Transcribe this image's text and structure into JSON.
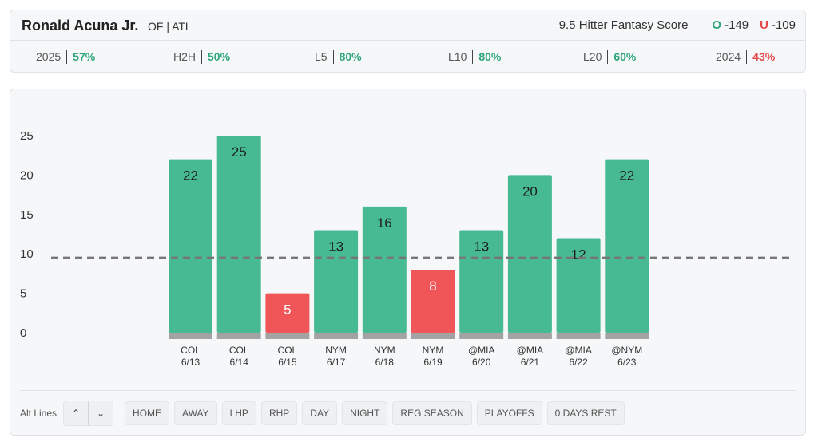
{
  "player": {
    "name": "Ronald Acuna Jr.",
    "meta": "OF | ATL"
  },
  "score": {
    "label": "9.5 Hitter Fantasy Score",
    "over_letter": "O",
    "over_odds": "-149",
    "under_letter": "U",
    "under_odds": "-109"
  },
  "stats": [
    {
      "label": "2025",
      "value": "57%",
      "trend": "positive"
    },
    {
      "label": "H2H",
      "value": "50%",
      "trend": "positive"
    },
    {
      "label": "L5",
      "value": "80%",
      "trend": "positive"
    },
    {
      "label": "L10",
      "value": "80%",
      "trend": "positive"
    },
    {
      "label": "L20",
      "value": "60%",
      "trend": "positive"
    },
    {
      "label": "2024",
      "value": "43%",
      "trend": "negative"
    }
  ],
  "chart_data": {
    "type": "bar",
    "categories": [
      "COL 6/13",
      "COL 6/14",
      "COL 6/15",
      "NYM 6/17",
      "NYM 6/18",
      "NYM 6/19",
      "@MIA 6/20",
      "@MIA 6/21",
      "@MIA 6/22",
      "@NYM 6/23"
    ],
    "opponents": [
      "COL",
      "COL",
      "COL",
      "NYM",
      "NYM",
      "NYM",
      "@MIA",
      "@MIA",
      "@MIA",
      "@NYM"
    ],
    "dates": [
      "6/13",
      "6/14",
      "6/15",
      "6/17",
      "6/18",
      "6/19",
      "6/20",
      "6/21",
      "6/22",
      "6/23"
    ],
    "values": [
      22,
      25,
      5,
      13,
      16,
      8,
      13,
      20,
      12,
      22
    ],
    "line": 9.5,
    "yticks": [
      0,
      5,
      10,
      15,
      20,
      25
    ],
    "ylim": [
      0,
      25
    ],
    "colors": {
      "over": "#47b993",
      "under": "#f05557",
      "base": "#a3a3a3",
      "line": "#777777"
    }
  },
  "filters": {
    "alt_lines_label": "Alt Lines",
    "up_icon": "chevron-up-icon",
    "down_icon": "chevron-down-icon",
    "up_glyph": "⌃",
    "down_glyph": "⌄",
    "chips": [
      "HOME",
      "AWAY",
      "LHP",
      "RHP",
      "DAY",
      "NIGHT",
      "REG SEASON",
      "PLAYOFFS",
      "0 DAYS REST"
    ]
  }
}
